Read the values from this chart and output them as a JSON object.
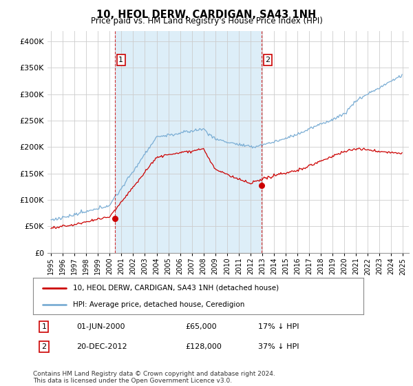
{
  "title": "10, HEOL DERW, CARDIGAN, SA43 1NH",
  "subtitle": "Price paid vs. HM Land Registry's House Price Index (HPI)",
  "ylim": [
    0,
    420000
  ],
  "yticks": [
    0,
    50000,
    100000,
    150000,
    200000,
    250000,
    300000,
    350000,
    400000
  ],
  "ytick_labels": [
    "£0",
    "£50K",
    "£100K",
    "£150K",
    "£200K",
    "£250K",
    "£300K",
    "£350K",
    "£400K"
  ],
  "hpi_color": "#7aadd4",
  "hpi_fill_color": "#ddeef8",
  "price_color": "#cc0000",
  "vline_color": "#cc0000",
  "marker1_year": 2000.46,
  "marker2_year": 2012.97,
  "marker1_price": 65000,
  "marker2_price": 128000,
  "legend_label1": "10, HEOL DERW, CARDIGAN, SA43 1NH (detached house)",
  "legend_label2": "HPI: Average price, detached house, Ceredigion",
  "annotation1_text": "01-JUN-2000",
  "annotation1_price": "£65,000",
  "annotation1_hpi": "17% ↓ HPI",
  "annotation2_text": "20-DEC-2012",
  "annotation2_price": "£128,000",
  "annotation2_hpi": "37% ↓ HPI",
  "footer": "Contains HM Land Registry data © Crown copyright and database right 2024.\nThis data is licensed under the Open Government Licence v3.0.",
  "background_color": "#ffffff",
  "grid_color": "#cccccc"
}
